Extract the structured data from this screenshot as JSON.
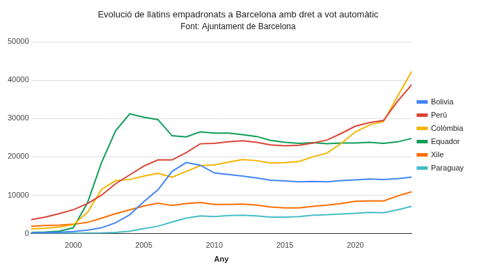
{
  "chart_data": {
    "type": "line",
    "title": "Evolució de llatins empadronats a Barcelona amb dret a vot automàtic",
    "subtitle": "Font: Ajuntament de Barcelona",
    "x_label": "Any",
    "x": [
      1997,
      1998,
      1999,
      2000,
      2001,
      2002,
      2003,
      2004,
      2005,
      2006,
      2007,
      2008,
      2009,
      2010,
      2011,
      2012,
      2013,
      2014,
      2015,
      2016,
      2017,
      2018,
      2019,
      2020,
      2021,
      2022,
      2023,
      2024
    ],
    "xlim": [
      1997,
      2024
    ],
    "xticks": [
      2000,
      2005,
      2010,
      2015,
      2020
    ],
    "ylim": [
      0,
      50000
    ],
    "yticks": [
      0,
      10000,
      20000,
      30000,
      40000,
      50000
    ],
    "grid": true,
    "legend": "right",
    "series": [
      {
        "name": "Bolivia",
        "color": "#4285f4",
        "values": [
          200,
          250,
          350,
          500,
          900,
          1500,
          2800,
          4900,
          8300,
          11400,
          16200,
          18500,
          17800,
          15800,
          15400,
          15000,
          14500,
          13900,
          13700,
          13500,
          13600,
          13500,
          13800,
          14000,
          14200,
          14100,
          14300,
          14700
        ]
      },
      {
        "name": "Perú",
        "color": "#db4437",
        "values": [
          3600,
          4300,
          5200,
          6200,
          7800,
          10000,
          13000,
          15300,
          17600,
          19200,
          19200,
          21100,
          23400,
          23500,
          23900,
          24200,
          23800,
          23100,
          22900,
          23000,
          23600,
          24400,
          26100,
          28000,
          28900,
          29500,
          34500,
          38800
        ]
      },
      {
        "name": "Colòmbia",
        "color": "#f4b400",
        "values": [
          1200,
          1400,
          1700,
          2300,
          5500,
          11500,
          13800,
          14100,
          15000,
          15700,
          14700,
          16200,
          17700,
          17900,
          18600,
          19300,
          19000,
          18400,
          18500,
          18800,
          20000,
          21000,
          23500,
          26500,
          28300,
          29200,
          35800,
          42300
        ]
      },
      {
        "name": "Equador",
        "color": "#0f9d58",
        "values": [
          300,
          400,
          600,
          1500,
          8000,
          18500,
          26800,
          31200,
          30300,
          29700,
          25500,
          25200,
          26500,
          26200,
          26200,
          25800,
          25300,
          24300,
          23800,
          23500,
          23700,
          23400,
          23600,
          23600,
          23800,
          23500,
          23900,
          24800
        ]
      },
      {
        "name": "Xile",
        "color": "#ff6d01",
        "values": [
          1900,
          2100,
          2200,
          2400,
          2900,
          4000,
          5200,
          6200,
          7200,
          7900,
          7300,
          7800,
          8100,
          7600,
          7600,
          7700,
          7400,
          6900,
          6700,
          6700,
          7100,
          7400,
          7800,
          8400,
          8500,
          8500,
          9800,
          10900
        ]
      },
      {
        "name": "Paraguay",
        "color": "#46bdc6",
        "values": [
          50,
          50,
          60,
          80,
          100,
          150,
          300,
          600,
          1300,
          1900,
          3000,
          4000,
          4600,
          4400,
          4700,
          4800,
          4600,
          4300,
          4300,
          4400,
          4800,
          4900,
          5100,
          5300,
          5500,
          5400,
          6200,
          7100
        ]
      }
    ]
  }
}
